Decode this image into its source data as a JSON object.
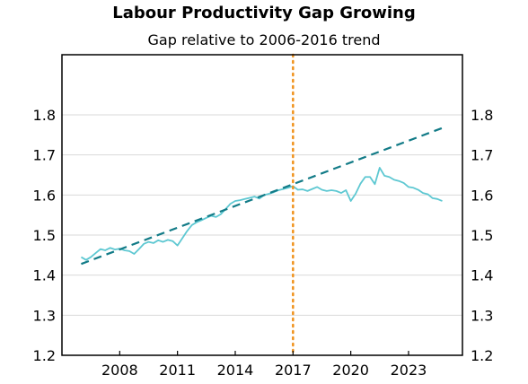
{
  "chart_data": {
    "type": "line",
    "title": "Labour Productivity Gap Growing",
    "subtitle": "Gap relative to 2006-2016 trend",
    "xlabel": "",
    "ylabel": "",
    "xlim": [
      2005.0,
      2025.8
    ],
    "ylim": [
      1.2,
      1.95
    ],
    "x_ticks": [
      2008,
      2011,
      2014,
      2017,
      2020,
      2023
    ],
    "x_tick_labels": [
      "2008",
      "2011",
      "2014",
      "2017",
      "2020",
      "2023"
    ],
    "y_ticks": [
      1.2,
      1.3,
      1.4,
      1.5,
      1.6,
      1.7,
      1.8
    ],
    "y_tick_labels": [
      "1.2",
      "1.3",
      "1.4",
      "1.5",
      "1.6",
      "1.7",
      "1.8"
    ],
    "y_axis_sides": "both",
    "grid": "horizontal",
    "legend": "none",
    "vertical_marker": {
      "x": 2017,
      "style": "dotted",
      "color": "#f0921c"
    },
    "series": [
      {
        "style": "solid",
        "color": "#5ec8d2",
        "x": [
          2006.0,
          2006.25,
          2006.5,
          2006.75,
          2007.0,
          2007.25,
          2007.5,
          2007.75,
          2008.0,
          2008.25,
          2008.5,
          2008.75,
          2009.0,
          2009.25,
          2009.5,
          2009.75,
          2010.0,
          2010.25,
          2010.5,
          2010.75,
          2011.0,
          2011.25,
          2011.5,
          2011.75,
          2012.0,
          2012.25,
          2012.5,
          2012.75,
          2013.0,
          2013.25,
          2013.5,
          2013.75,
          2014.0,
          2014.25,
          2014.5,
          2014.75,
          2015.0,
          2015.25,
          2015.5,
          2015.75,
          2016.0,
          2016.25,
          2016.5,
          2016.75,
          2017.0,
          2017.25,
          2017.5,
          2017.75,
          2018.0,
          2018.25,
          2018.5,
          2018.75,
          2019.0,
          2019.25,
          2019.5,
          2019.75,
          2020.0,
          2020.25,
          2020.5,
          2020.75,
          2021.0,
          2021.25,
          2021.5,
          2021.75,
          2022.0,
          2022.25,
          2022.5,
          2022.75,
          2023.0,
          2023.25,
          2023.5,
          2023.75,
          2024.0,
          2024.25,
          2024.5,
          2024.75
        ],
        "values": [
          1.445,
          1.438,
          1.445,
          1.455,
          1.465,
          1.462,
          1.468,
          1.464,
          1.466,
          1.462,
          1.46,
          1.453,
          1.465,
          1.478,
          1.483,
          1.48,
          1.487,
          1.483,
          1.488,
          1.485,
          1.474,
          1.492,
          1.51,
          1.525,
          1.532,
          1.537,
          1.543,
          1.548,
          1.545,
          1.552,
          1.565,
          1.578,
          1.585,
          1.587,
          1.59,
          1.593,
          1.596,
          1.591,
          1.6,
          1.603,
          1.607,
          1.612,
          1.615,
          1.618,
          1.622,
          1.613,
          1.614,
          1.61,
          1.615,
          1.62,
          1.613,
          1.61,
          1.612,
          1.61,
          1.605,
          1.612,
          1.585,
          1.603,
          1.628,
          1.645,
          1.645,
          1.627,
          1.668,
          1.648,
          1.645,
          1.638,
          1.635,
          1.63,
          1.62,
          1.618,
          1.613,
          1.605,
          1.602,
          1.592,
          1.59,
          1.585
        ]
      },
      {
        "style": "dashed",
        "color": "#127b87",
        "x": [
          2006.0,
          2024.8
        ],
        "values": [
          1.428,
          1.768
        ]
      }
    ]
  }
}
